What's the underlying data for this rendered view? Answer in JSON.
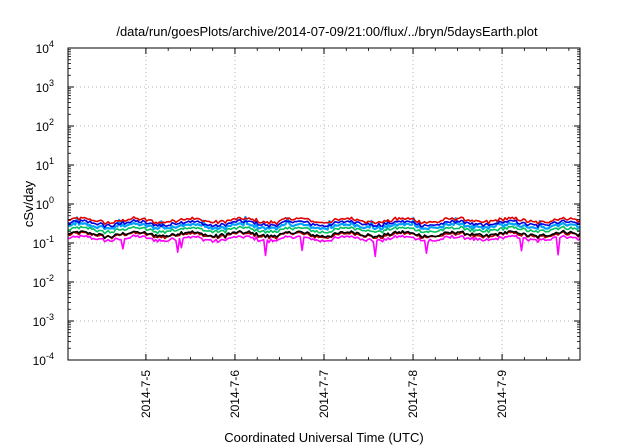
{
  "chart_data": {
    "type": "line",
    "title": "/data/run/goesPlots/archive/2014-07-09/21:00/flux/../bryn/5daysEarth.plot",
    "xlabel": "Coordinated Universal Time (UTC)",
    "ylabel": "cSv/day",
    "y_scale": "log",
    "ylim": [
      0.0001,
      10000
    ],
    "y_ticks": [
      {
        "base": "10",
        "exp": "-4"
      },
      {
        "base": "10",
        "exp": "-3"
      },
      {
        "base": "10",
        "exp": "-2"
      },
      {
        "base": "10",
        "exp": "-1"
      },
      {
        "base": "10",
        "exp": "0"
      },
      {
        "base": "10",
        "exp": "1"
      },
      {
        "base": "10",
        "exp": "2"
      },
      {
        "base": "10",
        "exp": "3"
      },
      {
        "base": "10",
        "exp": "4"
      }
    ],
    "xlim": [
      "2014-07-04 03:00",
      "2014-07-09 21:00"
    ],
    "x_ticks": [
      "2014-7-5",
      "2014-7-6",
      "2014-7-7",
      "2014-7-8",
      "2014-7-9"
    ],
    "grid": true,
    "series": [
      {
        "color": "#e00000",
        "level": 0.38
      },
      {
        "color": "#0000e0",
        "level": 0.32
      },
      {
        "color": "#00a0ff",
        "level": 0.27
      },
      {
        "color": "#00c060",
        "level": 0.22
      },
      {
        "color": "#000000",
        "level": 0.17
      },
      {
        "color": "#b00000",
        "level": 0.16
      },
      {
        "color": "#ff00ff",
        "level": 0.13
      }
    ]
  }
}
